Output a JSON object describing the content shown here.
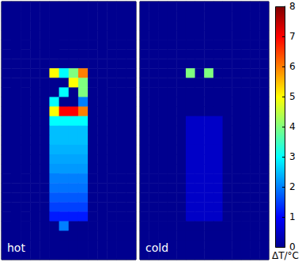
{
  "chart_data": {
    "type": "heatmap",
    "tick_labels": false,
    "panels": [
      {
        "label": "hot",
        "cells": [
          [
            0,
            0,
            0,
            0,
            0,
            0,
            0,
            0,
            0,
            0,
            0,
            0,
            0,
            0
          ],
          [
            0,
            0,
            0,
            0,
            0,
            0,
            0,
            0,
            0,
            0,
            0,
            0,
            0,
            0
          ],
          [
            0,
            0,
            0,
            0,
            0,
            0,
            0,
            0,
            0,
            0,
            0,
            0,
            0,
            0
          ],
          [
            0,
            0,
            0,
            0,
            0,
            0,
            0,
            0,
            0,
            0,
            0,
            0,
            0,
            0
          ],
          [
            0,
            0,
            0,
            0,
            0,
            0,
            0,
            0,
            0,
            0,
            0,
            0,
            0,
            0
          ],
          [
            0,
            0,
            0,
            0,
            0,
            0,
            0,
            0,
            0,
            0,
            0,
            0,
            0,
            0
          ],
          [
            0,
            0,
            0,
            0,
            0,
            0,
            0,
            0,
            0,
            0,
            0,
            0,
            0,
            0
          ],
          [
            0,
            0,
            0,
            0,
            0,
            5,
            3,
            4,
            6,
            0,
            0,
            0,
            0,
            0
          ],
          [
            0,
            0,
            0,
            0,
            0,
            0,
            0,
            5,
            4,
            0,
            0,
            0,
            0,
            0
          ],
          [
            0,
            0,
            0,
            0,
            0,
            0,
            3,
            0,
            4,
            0,
            0,
            0,
            0,
            0
          ],
          [
            0,
            0,
            0,
            0,
            0,
            3,
            0,
            0,
            2,
            0,
            0,
            0,
            0,
            0
          ],
          [
            0,
            0,
            0,
            0,
            0,
            5,
            7,
            7,
            6,
            0,
            0,
            0,
            0,
            0
          ],
          [
            0,
            0,
            0,
            0,
            0,
            3,
            3,
            3,
            3,
            0,
            0,
            0,
            0,
            0
          ],
          [
            0,
            0,
            0,
            0,
            0,
            2.5,
            2.5,
            2.5,
            2.5,
            0,
            0,
            0,
            0,
            0
          ],
          [
            0,
            0,
            0,
            0,
            0,
            2.5,
            2.5,
            2.5,
            2.5,
            0,
            0,
            0,
            0,
            0
          ],
          [
            0,
            0,
            0,
            0,
            0,
            2.4,
            2.4,
            2.4,
            2.4,
            0,
            0,
            0,
            0,
            0
          ],
          [
            0,
            0,
            0,
            0,
            0,
            2.3,
            2.3,
            2.3,
            2.3,
            0,
            0,
            0,
            0,
            0
          ],
          [
            0,
            0,
            0,
            0,
            0,
            2.2,
            2.2,
            2.2,
            2.2,
            0,
            0,
            0,
            0,
            0
          ],
          [
            0,
            0,
            0,
            0,
            0,
            2,
            2,
            2,
            2,
            0,
            0,
            0,
            0,
            0
          ],
          [
            0,
            0,
            0,
            0,
            0,
            1.9,
            1.9,
            1.9,
            1.9,
            0,
            0,
            0,
            0,
            0
          ],
          [
            0,
            0,
            0,
            0,
            0,
            1.7,
            1.7,
            1.7,
            1.7,
            0,
            0,
            0,
            0,
            0
          ],
          [
            0,
            0,
            0,
            0,
            0,
            1.5,
            1.5,
            1.5,
            1.5,
            0,
            0,
            0,
            0,
            0
          ],
          [
            0,
            0,
            0,
            0,
            0,
            1.2,
            1.2,
            1.2,
            1.2,
            0,
            0,
            0,
            0,
            0
          ],
          [
            0,
            0,
            0,
            0,
            0,
            0,
            2,
            0,
            0,
            0,
            0,
            0,
            0,
            0
          ],
          [
            0,
            0,
            0,
            0,
            0,
            0,
            0,
            0,
            0,
            0,
            0,
            0,
            0,
            0
          ],
          [
            0,
            0,
            0,
            0,
            0,
            0,
            0,
            0,
            0,
            0,
            0,
            0,
            0,
            0
          ],
          [
            0,
            0,
            0,
            0,
            0,
            0,
            0,
            0,
            0,
            0,
            0,
            0,
            0,
            0
          ]
        ]
      },
      {
        "label": "cold",
        "cells": [
          [
            0,
            0,
            0,
            0,
            0,
            0,
            0,
            0,
            0,
            0,
            0,
            0,
            0,
            0
          ],
          [
            0,
            0,
            0,
            0,
            0,
            0,
            0,
            0,
            0,
            0,
            0,
            0,
            0,
            0
          ],
          [
            0,
            0,
            0,
            0,
            0,
            0,
            0,
            0,
            0,
            0,
            0,
            0,
            0,
            0
          ],
          [
            0,
            0,
            0,
            0,
            0,
            0,
            0,
            0,
            0,
            0,
            0,
            0,
            0,
            0
          ],
          [
            0,
            0,
            0,
            0,
            0,
            0,
            0,
            0,
            0,
            0,
            0,
            0,
            0,
            0
          ],
          [
            0,
            0,
            0,
            0,
            0,
            0,
            0,
            0,
            0,
            0,
            0,
            0,
            0,
            0
          ],
          [
            0,
            0,
            0,
            0,
            0,
            0,
            0,
            0,
            0,
            0,
            0,
            0,
            0,
            0
          ],
          [
            0,
            0,
            0,
            0,
            0,
            4,
            0,
            4,
            0,
            0,
            0,
            0,
            0,
            0
          ],
          [
            0,
            0,
            0,
            0,
            0,
            0,
            0,
            0,
            0,
            0,
            0,
            0,
            0,
            0
          ],
          [
            0,
            0,
            0,
            0,
            0,
            0,
            0,
            0,
            0,
            0,
            0,
            0,
            0,
            0
          ],
          [
            0,
            0,
            0,
            0,
            0,
            0,
            0,
            0,
            0,
            0,
            0,
            0,
            0,
            0
          ],
          [
            0,
            0,
            0,
            0,
            0,
            0,
            0,
            0,
            0,
            0,
            0,
            0,
            0,
            0
          ],
          [
            0,
            0,
            0,
            0,
            0,
            0.5,
            0.5,
            0.5,
            0.5,
            0,
            0,
            0,
            0,
            0
          ],
          [
            0,
            0,
            0,
            0,
            0,
            0.5,
            0.5,
            0.5,
            0.5,
            0,
            0,
            0,
            0,
            0
          ],
          [
            0,
            0,
            0,
            0,
            0,
            0.5,
            0.5,
            0.5,
            0.5,
            0,
            0,
            0,
            0,
            0
          ],
          [
            0,
            0,
            0,
            0,
            0,
            0.5,
            0.5,
            0.5,
            0.5,
            0,
            0,
            0,
            0,
            0
          ],
          [
            0,
            0,
            0,
            0,
            0,
            0.5,
            0.5,
            0.5,
            0.5,
            0,
            0,
            0,
            0,
            0
          ],
          [
            0,
            0,
            0,
            0,
            0,
            0.5,
            0.5,
            0.5,
            0.5,
            0,
            0,
            0,
            0,
            0
          ],
          [
            0,
            0,
            0,
            0,
            0,
            0.5,
            0.5,
            0.5,
            0.5,
            0,
            0,
            0,
            0,
            0
          ],
          [
            0,
            0,
            0,
            0,
            0,
            0.5,
            0.5,
            0.5,
            0.5,
            0,
            0,
            0,
            0,
            0
          ],
          [
            0,
            0,
            0,
            0,
            0,
            0.5,
            0.5,
            0.5,
            0.5,
            0,
            0,
            0,
            0,
            0
          ],
          [
            0,
            0,
            0,
            0,
            0,
            0.5,
            0.5,
            0.5,
            0.5,
            0,
            0,
            0,
            0,
            0
          ],
          [
            0,
            0,
            0,
            0,
            0,
            0.5,
            0.5,
            0.5,
            0.5,
            0,
            0,
            0,
            0,
            0
          ],
          [
            0,
            0,
            0,
            0,
            0,
            0,
            0,
            0,
            0,
            0,
            0,
            0,
            0,
            0
          ],
          [
            0,
            0,
            0,
            0,
            0,
            0,
            0,
            0,
            0,
            0,
            0,
            0,
            0,
            0
          ],
          [
            0,
            0,
            0,
            0,
            0,
            0,
            0,
            0,
            0,
            0,
            0,
            0,
            0,
            0
          ],
          [
            0,
            0,
            0,
            0,
            0,
            0,
            0,
            0,
            0,
            0,
            0,
            0,
            0,
            0
          ]
        ]
      }
    ],
    "colorbar": {
      "range": [
        0,
        8
      ],
      "ticks": [
        0,
        1,
        2,
        3,
        4,
        5,
        6,
        7,
        8
      ],
      "label": "ΔT/°C"
    }
  }
}
